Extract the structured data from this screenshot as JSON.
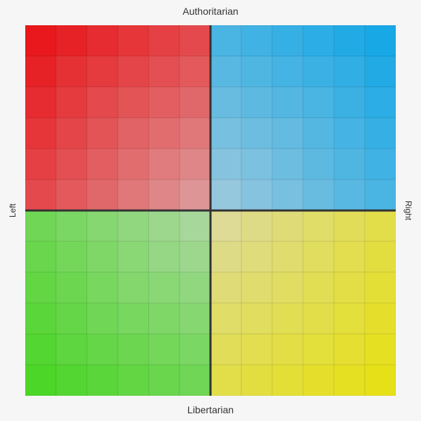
{
  "labels": {
    "top": "Authoritarian",
    "bottom": "Libertarian",
    "left": "Left",
    "right": "Right"
  },
  "grid": {
    "cells_per_side": 12,
    "corner_colors": {
      "top_left": "#e8181c",
      "top_right": "#18a8e6",
      "bottom_left": "#4cd628",
      "bottom_right": "#e6e018"
    },
    "center_color": "#d8d8d8",
    "divider_color": "#333333"
  }
}
